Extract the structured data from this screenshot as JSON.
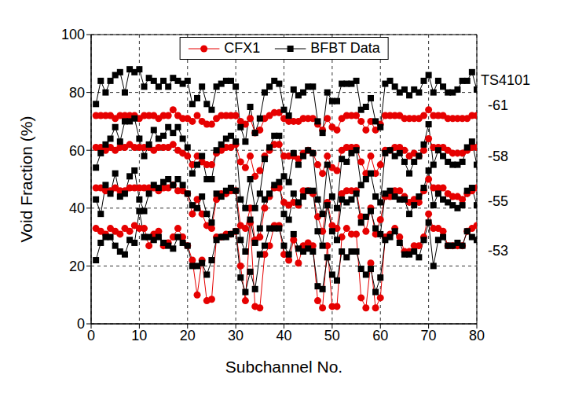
{
  "chart_data": {
    "type": "line",
    "xlabel": "Subchannel No.",
    "ylabel": "Void Fraction (%)",
    "annotation": "TS4101",
    "x": [
      1,
      2,
      3,
      4,
      5,
      6,
      7,
      8,
      9,
      10,
      11,
      12,
      13,
      14,
      15,
      16,
      17,
      18,
      19,
      20,
      21,
      22,
      23,
      24,
      25,
      26,
      27,
      28,
      29,
      30,
      31,
      32,
      33,
      34,
      35,
      36,
      37,
      38,
      39,
      40,
      41,
      42,
      43,
      44,
      45,
      46,
      47,
      48,
      49,
      50,
      51,
      52,
      53,
      54,
      55,
      56,
      57,
      58,
      59,
      60,
      61,
      62,
      63,
      64,
      65,
      66,
      67,
      68,
      69,
      70,
      71,
      72,
      73,
      74,
      75,
      76,
      77,
      78,
      79,
      80
    ],
    "xlim": [
      0,
      80
    ],
    "xticks": [
      0,
      10,
      20,
      30,
      40,
      50,
      60,
      70,
      80
    ],
    "ylim": [
      0,
      100
    ],
    "yticks": [
      0,
      20,
      40,
      60,
      80,
      100
    ],
    "grid": true,
    "legend": "top",
    "series": [
      {
        "name": "CFX1",
        "color": "#e60000",
        "marker": "circle",
        "line_style": "solid",
        "groups": [
          {
            "label": "-61",
            "values": [
              72,
              72,
              72,
              72,
              71,
              72,
              72,
              72,
              72,
              71,
              72,
              72,
              72,
              71,
              72,
              72,
              74,
              72,
              71,
              71,
              70,
              72,
              70,
              69,
              69,
              71,
              72,
              72,
              72,
              72,
              70,
              69,
              71,
              66,
              67,
              71,
              72,
              73,
              73,
              71,
              70,
              70,
              70,
              71,
              71,
              71,
              69,
              67,
              71,
              68,
              67,
              71,
              72,
              72,
              72,
              70,
              67,
              70,
              67,
              69,
              72,
              72,
              72,
              72,
              71,
              71,
              71,
              71,
              72,
              74,
              72,
              72,
              72,
              71,
              71,
              71,
              71,
              71,
              72,
              72
            ]
          },
          {
            "label": "-58",
            "values": [
              61,
              61,
              60,
              61,
              60,
              61,
              61,
              62,
              61,
              61,
              61,
              61,
              60,
              61,
              61,
              61,
              62,
              60,
              59,
              58,
              55,
              58,
              56,
              55,
              55,
              59,
              60,
              61,
              61,
              62,
              56,
              54,
              58,
              51,
              53,
              58,
              60,
              62,
              62,
              58,
              58,
              58,
              57,
              59,
              60,
              59,
              55,
              52,
              58,
              54,
              53,
              60,
              61,
              61,
              61,
              56,
              52,
              58,
              52,
              55,
              60,
              60,
              61,
              61,
              60,
              58,
              59,
              58,
              60,
              64,
              61,
              61,
              61,
              60,
              59,
              59,
              59,
              60,
              61,
              61
            ]
          },
          {
            "label": "-55",
            "values": [
              47,
              47,
              46,
              46,
              47,
              46,
              46,
              47,
              47,
              47,
              47,
              47,
              47,
              46,
              47,
              47,
              48,
              46,
              46,
              45,
              38,
              43,
              38,
              34,
              33,
              43,
              45,
              45,
              46,
              46,
              34,
              33,
              40,
              29,
              30,
              40,
              44,
              47,
              47,
              42,
              41,
              42,
              41,
              46,
              46,
              45,
              37,
              32,
              42,
              34,
              33,
              45,
              46,
              46,
              46,
              37,
              32,
              40,
              31,
              36,
              44,
              44,
              46,
              46,
              44,
              42,
              43,
              42,
              46,
              50,
              47,
              47,
              47,
              45,
              44,
              44,
              43,
              45,
              46,
              47
            ]
          },
          {
            "label": "-53",
            "values": [
              33,
              32,
              31,
              33,
              32,
              31,
              33,
              32,
              34,
              33,
              33,
              27,
              31,
              32,
              27,
              28,
              30,
              33,
              30,
              27,
              22,
              10,
              22,
              8,
              8.5,
              30,
              30,
              31,
              31,
              32,
              20,
              8,
              35,
              6,
              5.5,
              24,
              27,
              34,
              34,
              24,
              22,
              29,
              21,
              27,
              28,
              27,
              8,
              5.5,
              27,
              6,
              6,
              30,
              33,
              31,
              31,
              9,
              5.5,
              21,
              5.5,
              9,
              30,
              31,
              33,
              30,
              25,
              25,
              27,
              27,
              30,
              38,
              33,
              33,
              32,
              27,
              27,
              27,
              27,
              32,
              33,
              34
            ]
          }
        ]
      },
      {
        "name": "BFBT Data",
        "color": "#000000",
        "marker": "square",
        "line_style": "solid",
        "groups": [
          {
            "label": "-61",
            "values": [
              76,
              84,
              80,
              84,
              86,
              87,
              80,
              88,
              87,
              88,
              82,
              85,
              84,
              82,
              84,
              82,
              85,
              84,
              83,
              84,
              76,
              78,
              82,
              76,
              74,
              82,
              83,
              84,
              84,
              82,
              68,
              63,
              75,
              66,
              71,
              80,
              82,
              84,
              83,
              74,
              72,
              81,
              79,
              80,
              82,
              82,
              70,
              66,
              80,
              77,
              77,
              83,
              83,
              83,
              84,
              74,
              75,
              78,
              70,
              68,
              83,
              84,
              82,
              80,
              81,
              79,
              81,
              80,
              84,
              86,
              80,
              84,
              82,
              80,
              80,
              81,
              84,
              84,
              87,
              81
            ]
          },
          {
            "label": "-58",
            "values": [
              54,
              59,
              62,
              64,
              68,
              63,
              70,
              70,
              71,
              64,
              58,
              62,
              67,
              64,
              65,
              68,
              66,
              68,
              64,
              61,
              52,
              55,
              58,
              50,
              50,
              60,
              62,
              64,
              65,
              63,
              43,
              40,
              50,
              40,
              45,
              57,
              61,
              65,
              65,
              51,
              49,
              59,
              55,
              58,
              60,
              59,
              43,
              38,
              55,
              44,
              40,
              57,
              56,
              59,
              60,
              48,
              50,
              52,
              44,
              42,
              59,
              60,
              58,
              59,
              56,
              52,
              56,
              58,
              62,
              69,
              55,
              60,
              58,
              56,
              55,
              55,
              56,
              61,
              63,
              55
            ]
          },
          {
            "label": "-55",
            "values": [
              43,
              38,
              48,
              45,
              52,
              44,
              45,
              51,
              53,
              43,
              39,
              45,
              48,
              47,
              49,
              50,
              48,
              50,
              48,
              45,
              41,
              40,
              44,
              38,
              35,
              45,
              44,
              46,
              47,
              46,
              29,
              25,
              36,
              28,
              33,
              43,
              45,
              48,
              49,
              38,
              36,
              45,
              42,
              44,
              46,
              46,
              32,
              27,
              41,
              32,
              29,
              43,
              42,
              43,
              45,
              35,
              37,
              39,
              33,
              31,
              45,
              46,
              44,
              43,
              43,
              38,
              41,
              44,
              47,
              53,
              41,
              45,
              43,
              42,
              41,
              40,
              41,
              46,
              47,
              41
            ]
          },
          {
            "label": "-53",
            "values": [
              22,
              28,
              30,
              30,
              27,
              25,
              24,
              29,
              28,
              39,
              30,
              30,
              29,
              30,
              28,
              27,
              26,
              30,
              28,
              27,
              20,
              20,
              21,
              17,
              22,
              29,
              30,
              30,
              31,
              32,
              16,
              11,
              18,
              12,
              24,
              27,
              33,
              33,
              33,
              27,
              24,
              31,
              26,
              25,
              26,
              25,
              13,
              12,
              23,
              17,
              15,
              25,
              23,
              25,
              25,
              19,
              17,
              19,
              11,
              16,
              29,
              30,
              32,
              28,
              24,
              24,
              25,
              23,
              29,
              35,
              20,
              29,
              30,
              27,
              27,
              28,
              27,
              32,
              30,
              29
            ]
          }
        ]
      }
    ]
  }
}
